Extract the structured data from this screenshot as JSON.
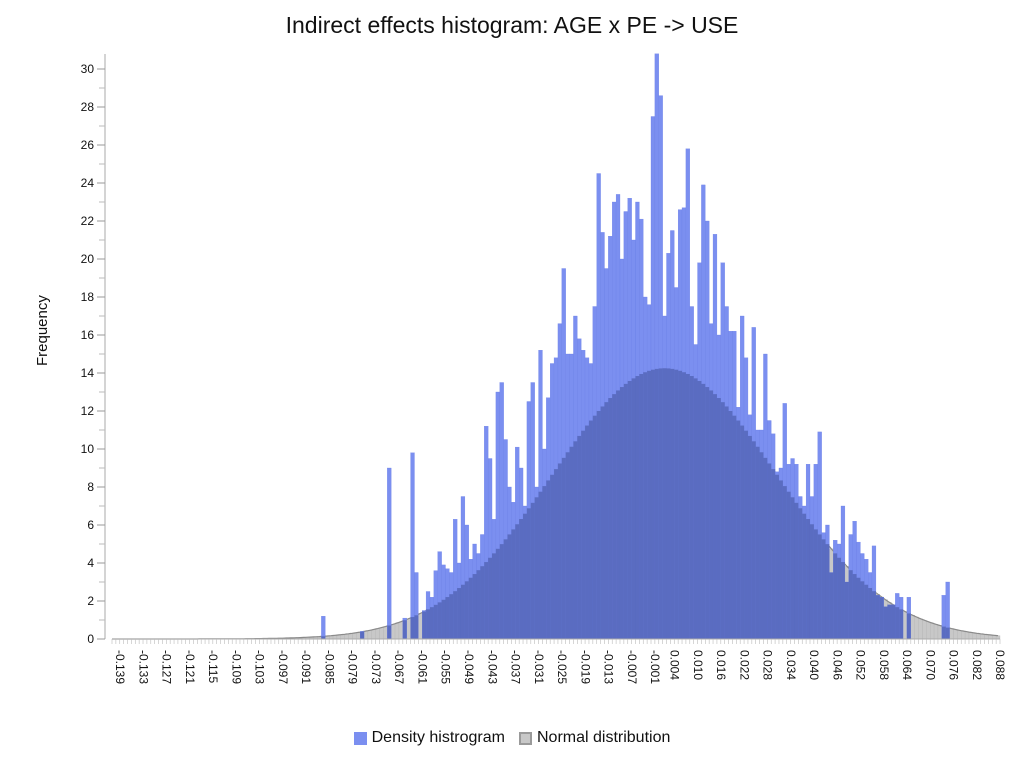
{
  "chart_data": {
    "type": "bar",
    "title": "Indirect effects histogram: AGE x PE -> USE",
    "xlabel": "",
    "ylabel": "Frequency",
    "ylim": [
      0,
      31
    ],
    "y_ticks": [
      0,
      2,
      4,
      6,
      8,
      10,
      12,
      14,
      16,
      18,
      20,
      22,
      24,
      26,
      28,
      30
    ],
    "x_ticks": [
      "-0.139",
      "-0.133",
      "-0.127",
      "-0.121",
      "-0.115",
      "-0.109",
      "-0.103",
      "-0.097",
      "-0.091",
      "-0.085",
      "-0.079",
      "-0.073",
      "-0.067",
      "-0.061",
      "-0.055",
      "-0.049",
      "-0.043",
      "-0.037",
      "-0.031",
      "-0.025",
      "-0.019",
      "-0.013",
      "-0.007",
      "-0.001",
      "0.004",
      "0.010",
      "0.016",
      "0.022",
      "0.028",
      "0.034",
      "0.040",
      "0.046",
      "0.052",
      "0.058",
      "0.064",
      "0.070",
      "0.076",
      "0.082",
      "0.088"
    ],
    "xlim": [
      -0.139,
      0.09
    ],
    "bin_width": 0.001,
    "series": [
      {
        "name": "Density histrogram",
        "color": "#7b8ff0",
        "bins": [
          [
            -0.085,
            1.2
          ],
          [
            -0.075,
            0.4
          ],
          [
            -0.068,
            9.0
          ],
          [
            -0.064,
            1.1
          ],
          [
            -0.062,
            9.8
          ],
          [
            -0.061,
            3.5
          ],
          [
            -0.059,
            1.5
          ],
          [
            -0.058,
            2.5
          ],
          [
            -0.057,
            2.2
          ],
          [
            -0.056,
            3.6
          ],
          [
            -0.055,
            4.6
          ],
          [
            -0.054,
            3.9
          ],
          [
            -0.053,
            3.7
          ],
          [
            -0.052,
            3.5
          ],
          [
            -0.051,
            6.3
          ],
          [
            -0.05,
            4.0
          ],
          [
            -0.049,
            7.5
          ],
          [
            -0.048,
            6.0
          ],
          [
            -0.047,
            4.2
          ],
          [
            -0.046,
            5.0
          ],
          [
            -0.045,
            4.5
          ],
          [
            -0.044,
            5.5
          ],
          [
            -0.043,
            11.2
          ],
          [
            -0.042,
            9.5
          ],
          [
            -0.041,
            6.3
          ],
          [
            -0.04,
            13.0
          ],
          [
            -0.039,
            13.5
          ],
          [
            -0.038,
            10.5
          ],
          [
            -0.037,
            8.0
          ],
          [
            -0.036,
            7.2
          ],
          [
            -0.035,
            10.1
          ],
          [
            -0.034,
            9.0
          ],
          [
            -0.033,
            7.0
          ],
          [
            -0.032,
            12.5
          ],
          [
            -0.031,
            13.5
          ],
          [
            -0.03,
            8.0
          ],
          [
            -0.029,
            15.2
          ],
          [
            -0.028,
            10.0
          ],
          [
            -0.027,
            12.7
          ],
          [
            -0.026,
            14.5
          ],
          [
            -0.025,
            14.8
          ],
          [
            -0.024,
            16.6
          ],
          [
            -0.023,
            19.5
          ],
          [
            -0.022,
            15.0
          ],
          [
            -0.021,
            15.0
          ],
          [
            -0.02,
            17.0
          ],
          [
            -0.019,
            15.8
          ],
          [
            -0.018,
            15.2
          ],
          [
            -0.017,
            14.8
          ],
          [
            -0.016,
            14.5
          ],
          [
            -0.015,
            17.5
          ],
          [
            -0.014,
            24.5
          ],
          [
            -0.013,
            21.4
          ],
          [
            -0.012,
            19.5
          ],
          [
            -0.011,
            21.2
          ],
          [
            -0.01,
            23.0
          ],
          [
            -0.009,
            23.4
          ],
          [
            -0.008,
            20.0
          ],
          [
            -0.007,
            22.5
          ],
          [
            -0.006,
            23.2
          ],
          [
            -0.005,
            21.0
          ],
          [
            -0.004,
            23.0
          ],
          [
            -0.003,
            22.1
          ],
          [
            -0.002,
            18.0
          ],
          [
            -0.001,
            17.6
          ],
          [
            0.0,
            27.5
          ],
          [
            0.001,
            30.8
          ],
          [
            0.002,
            28.6
          ],
          [
            0.003,
            17.0
          ],
          [
            0.004,
            20.3
          ],
          [
            0.005,
            21.5
          ],
          [
            0.006,
            18.5
          ],
          [
            0.007,
            22.6
          ],
          [
            0.008,
            22.7
          ],
          [
            0.009,
            25.8
          ],
          [
            0.01,
            17.5
          ],
          [
            0.011,
            15.5
          ],
          [
            0.012,
            19.8
          ],
          [
            0.013,
            23.9
          ],
          [
            0.014,
            22.0
          ],
          [
            0.015,
            16.6
          ],
          [
            0.016,
            21.3
          ],
          [
            0.017,
            16.0
          ],
          [
            0.018,
            19.8
          ],
          [
            0.019,
            17.5
          ],
          [
            0.02,
            16.2
          ],
          [
            0.021,
            16.2
          ],
          [
            0.022,
            12.2
          ],
          [
            0.023,
            17.0
          ],
          [
            0.024,
            14.8
          ],
          [
            0.025,
            11.8
          ],
          [
            0.026,
            16.4
          ],
          [
            0.027,
            11.0
          ],
          [
            0.028,
            11.0
          ],
          [
            0.029,
            15.0
          ],
          [
            0.03,
            11.5
          ],
          [
            0.031,
            10.8
          ],
          [
            0.032,
            8.8
          ],
          [
            0.033,
            9.0
          ],
          [
            0.034,
            12.4
          ],
          [
            0.035,
            9.2
          ],
          [
            0.036,
            9.5
          ],
          [
            0.037,
            9.2
          ],
          [
            0.038,
            7.5
          ],
          [
            0.039,
            7.0
          ],
          [
            0.04,
            9.2
          ],
          [
            0.041,
            7.5
          ],
          [
            0.042,
            9.2
          ],
          [
            0.043,
            10.9
          ],
          [
            0.044,
            5.6
          ],
          [
            0.045,
            6.0
          ],
          [
            0.046,
            3.5
          ],
          [
            0.047,
            5.2
          ],
          [
            0.048,
            5.0
          ],
          [
            0.049,
            7.0
          ],
          [
            0.05,
            3.0
          ],
          [
            0.051,
            5.5
          ],
          [
            0.052,
            6.2
          ],
          [
            0.053,
            5.1
          ],
          [
            0.054,
            4.5
          ],
          [
            0.055,
            4.2
          ],
          [
            0.056,
            3.5
          ],
          [
            0.057,
            4.9
          ],
          [
            0.058,
            2.3
          ],
          [
            0.059,
            2.2
          ],
          [
            0.06,
            1.7
          ],
          [
            0.061,
            1.8
          ],
          [
            0.062,
            1.8
          ],
          [
            0.063,
            2.4
          ],
          [
            0.064,
            2.2
          ],
          [
            0.066,
            2.2
          ],
          [
            0.075,
            2.3
          ],
          [
            0.076,
            3.0
          ]
        ]
      },
      {
        "name": "Normal distribution",
        "color": "#9a9a9a",
        "fill": "#c8c8c8",
        "mean": 0.0035,
        "sd": 0.029,
        "peak": 14.25
      }
    ],
    "legend_position": "bottom-center",
    "grid": false
  }
}
